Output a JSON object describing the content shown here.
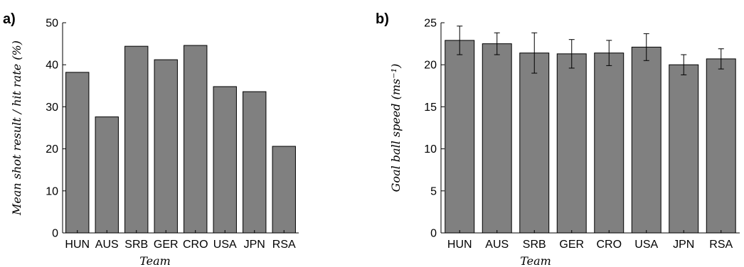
{
  "chart_data": [
    {
      "panel_label": "a)",
      "type": "bar",
      "categories": [
        "HUN",
        "AUS",
        "SRB",
        "GER",
        "CRO",
        "USA",
        "JPN",
        "RSA"
      ],
      "values": [
        38.2,
        27.6,
        44.4,
        41.2,
        44.6,
        34.8,
        33.6,
        20.6
      ],
      "xlabel": "Team",
      "ylabel": "Mean shot result / hit rate (%)",
      "ylim": [
        0,
        50
      ],
      "yticks": [
        "0",
        "10",
        "20",
        "30",
        "40",
        "50"
      ],
      "bar_color": "#808080",
      "error_bars": false
    },
    {
      "panel_label": "b)",
      "type": "bar",
      "categories": [
        "HUN",
        "AUS",
        "SRB",
        "GER",
        "CRO",
        "USA",
        "JPN",
        "RSA"
      ],
      "values": [
        22.9,
        22.5,
        21.4,
        21.3,
        21.4,
        22.1,
        20.0,
        20.7
      ],
      "errors": [
        1.7,
        1.3,
        2.4,
        1.7,
        1.5,
        1.6,
        1.2,
        1.2
      ],
      "xlabel": "Team",
      "ylabel": "Goal ball speed (ms⁻¹)",
      "ylim": [
        0,
        25
      ],
      "yticks": [
        "0",
        "5",
        "10",
        "15",
        "20",
        "25"
      ],
      "bar_color": "#808080",
      "error_bars": true
    }
  ]
}
